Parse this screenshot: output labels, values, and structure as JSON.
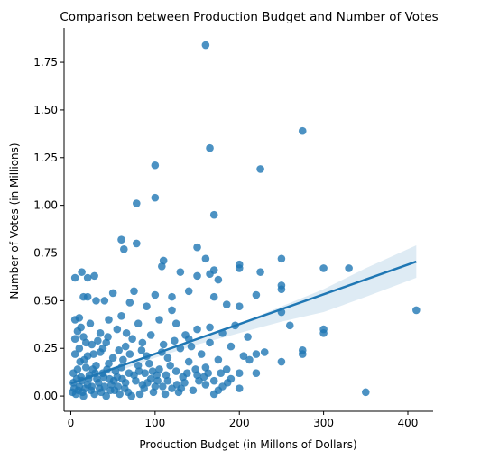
{
  "chart_data": {
    "type": "scatter",
    "title": "Comparison between Production Budget and Number of Votes",
    "xlabel": "Production Budget (in Millons of Dollars)",
    "ylabel": "Number of Votes (in Millions)",
    "xlim": [
      -8,
      430
    ],
    "ylim": [
      -0.08,
      1.93
    ],
    "xticks": [
      0,
      100,
      200,
      300,
      400
    ],
    "xtick_labels": [
      "0",
      "100",
      "200",
      "300",
      "400"
    ],
    "yticks": [
      0.0,
      0.25,
      0.5,
      0.75,
      1.0,
      1.25,
      1.5,
      1.75
    ],
    "ytick_labels": [
      "0.00",
      "0.25",
      "0.50",
      "0.75",
      "1.00",
      "1.25",
      "1.50",
      "1.75"
    ],
    "grid": false,
    "point_color": "#1f77b4",
    "regression": {
      "color": "#1f77b4",
      "line": [
        [
          0,
          0.065
        ],
        [
          410,
          0.705
        ]
      ],
      "ci_band": {
        "x": [
          0,
          100,
          150,
          200,
          250,
          300,
          350,
          410
        ],
        "lower": [
          0.04,
          0.2,
          0.27,
          0.33,
          0.39,
          0.44,
          0.52,
          0.62
        ],
        "upper": [
          0.085,
          0.22,
          0.3,
          0.38,
          0.47,
          0.56,
          0.67,
          0.79
        ]
      }
    },
    "points": [
      [
        160,
        1.84
      ],
      [
        275,
        1.39
      ],
      [
        165,
        1.3
      ],
      [
        225,
        1.19
      ],
      [
        100,
        1.21
      ],
      [
        100,
        1.04
      ],
      [
        78,
        1.01
      ],
      [
        170,
        0.95
      ],
      [
        60,
        0.82
      ],
      [
        78,
        0.8
      ],
      [
        63,
        0.77
      ],
      [
        150,
        0.78
      ],
      [
        110,
        0.71
      ],
      [
        108,
        0.68
      ],
      [
        160,
        0.72
      ],
      [
        170,
        0.66
      ],
      [
        200,
        0.69
      ],
      [
        200,
        0.67
      ],
      [
        225,
        0.65
      ],
      [
        250,
        0.72
      ],
      [
        300,
        0.67
      ],
      [
        330,
        0.67
      ],
      [
        13,
        0.65
      ],
      [
        20,
        0.62
      ],
      [
        28,
        0.63
      ],
      [
        5,
        0.62
      ],
      [
        165,
        0.64
      ],
      [
        175,
        0.61
      ],
      [
        150,
        0.63
      ],
      [
        130,
        0.65
      ],
      [
        250,
        0.58
      ],
      [
        250,
        0.56
      ],
      [
        220,
        0.53
      ],
      [
        170,
        0.52
      ],
      [
        140,
        0.55
      ],
      [
        120,
        0.52
      ],
      [
        100,
        0.53
      ],
      [
        75,
        0.55
      ],
      [
        50,
        0.54
      ],
      [
        40,
        0.5
      ],
      [
        20,
        0.52
      ],
      [
        15,
        0.52
      ],
      [
        30,
        0.5
      ],
      [
        185,
        0.48
      ],
      [
        200,
        0.47
      ],
      [
        120,
        0.45
      ],
      [
        90,
        0.47
      ],
      [
        70,
        0.49
      ],
      [
        60,
        0.42
      ],
      [
        250,
        0.44
      ],
      [
        410,
        0.45
      ],
      [
        300,
        0.35
      ],
      [
        300,
        0.33
      ],
      [
        260,
        0.37
      ],
      [
        275,
        0.24
      ],
      [
        275,
        0.22
      ],
      [
        230,
        0.23
      ],
      [
        220,
        0.22
      ],
      [
        250,
        0.18
      ],
      [
        220,
        0.12
      ],
      [
        350,
        0.02
      ],
      [
        5,
        0.4
      ],
      [
        10,
        0.41
      ],
      [
        45,
        0.4
      ],
      [
        80,
        0.38
      ],
      [
        105,
        0.4
      ],
      [
        125,
        0.38
      ],
      [
        150,
        0.35
      ],
      [
        180,
        0.33
      ],
      [
        210,
        0.31
      ],
      [
        140,
        0.3
      ],
      [
        95,
        0.32
      ],
      [
        55,
        0.35
      ],
      [
        35,
        0.33
      ],
      [
        15,
        0.31
      ],
      [
        8,
        0.34
      ],
      [
        165,
        0.28
      ],
      [
        190,
        0.26
      ],
      [
        205,
        0.21
      ],
      [
        175,
        0.19
      ],
      [
        155,
        0.22
      ],
      [
        130,
        0.25
      ],
      [
        110,
        0.27
      ],
      [
        85,
        0.28
      ],
      [
        65,
        0.26
      ],
      [
        42,
        0.28
      ],
      [
        25,
        0.27
      ],
      [
        10,
        0.25
      ],
      [
        5,
        0.22
      ],
      [
        20,
        0.21
      ],
      [
        35,
        0.23
      ],
      [
        50,
        0.2
      ],
      [
        70,
        0.22
      ],
      [
        90,
        0.21
      ],
      [
        115,
        0.2
      ],
      [
        140,
        0.18
      ],
      [
        160,
        0.15
      ],
      [
        185,
        0.14
      ],
      [
        200,
        0.12
      ],
      [
        170,
        0.08
      ],
      [
        150,
        0.11
      ],
      [
        125,
        0.13
      ],
      [
        105,
        0.14
      ],
      [
        80,
        0.16
      ],
      [
        60,
        0.15
      ],
      [
        45,
        0.17
      ],
      [
        30,
        0.16
      ],
      [
        18,
        0.15
      ],
      [
        8,
        0.14
      ],
      [
        3,
        0.12
      ],
      [
        12,
        0.1
      ],
      [
        22,
        0.11
      ],
      [
        38,
        0.12
      ],
      [
        55,
        0.1
      ],
      [
        75,
        0.11
      ],
      [
        95,
        0.09
      ],
      [
        115,
        0.08
      ],
      [
        135,
        0.07
      ],
      [
        160,
        0.06
      ],
      [
        180,
        0.05
      ],
      [
        145,
        0.03
      ],
      [
        120,
        0.04
      ],
      [
        100,
        0.05
      ],
      [
        85,
        0.06
      ],
      [
        65,
        0.07
      ],
      [
        48,
        0.06
      ],
      [
        33,
        0.07
      ],
      [
        20,
        0.06
      ],
      [
        10,
        0.05
      ],
      [
        4,
        0.04
      ],
      [
        2,
        0.02
      ],
      [
        6,
        0.01
      ],
      [
        14,
        0.02
      ],
      [
        24,
        0.03
      ],
      [
        36,
        0.02
      ],
      [
        52,
        0.03
      ],
      [
        68,
        0.02
      ],
      [
        82,
        0.01
      ],
      [
        98,
        0.02
      ],
      [
        112,
        0.01
      ],
      [
        128,
        0.02
      ],
      [
        170,
        0.01
      ],
      [
        200,
        0.04
      ],
      [
        190,
        0.09
      ],
      [
        15,
        0.0
      ],
      [
        28,
        0.01
      ],
      [
        42,
        0.0
      ],
      [
        58,
        0.01
      ],
      [
        72,
        0.0
      ],
      [
        3,
        0.07
      ],
      [
        7,
        0.09
      ],
      [
        11,
        0.18
      ],
      [
        16,
        0.19
      ],
      [
        26,
        0.14
      ],
      [
        31,
        0.09
      ],
      [
        40,
        0.05
      ],
      [
        46,
        0.09
      ],
      [
        53,
        0.13
      ],
      [
        62,
        0.19
      ],
      [
        88,
        0.12
      ],
      [
        93,
        0.17
      ],
      [
        102,
        0.11
      ],
      [
        118,
        0.16
      ],
      [
        133,
        0.1
      ],
      [
        148,
        0.14
      ],
      [
        158,
        0.1
      ],
      [
        178,
        0.12
      ],
      [
        5,
        0.3
      ],
      [
        12,
        0.36
      ],
      [
        18,
        0.28
      ],
      [
        23,
        0.38
      ],
      [
        27,
        0.22
      ],
      [
        32,
        0.29
      ],
      [
        38,
        0.25
      ],
      [
        44,
        0.31
      ],
      [
        57,
        0.24
      ],
      [
        66,
        0.33
      ],
      [
        73,
        0.3
      ],
      [
        84,
        0.24
      ],
      [
        108,
        0.23
      ],
      [
        123,
        0.29
      ],
      [
        136,
        0.32
      ],
      [
        143,
        0.26
      ],
      [
        165,
        0.36
      ],
      [
        195,
        0.37
      ],
      [
        212,
        0.19
      ],
      [
        9,
        0.03
      ],
      [
        13,
        0.08
      ],
      [
        17,
        0.04
      ],
      [
        21,
        0.09
      ],
      [
        25,
        0.05
      ],
      [
        29,
        0.12
      ],
      [
        34,
        0.04
      ],
      [
        39,
        0.1
      ],
      [
        43,
        0.14
      ],
      [
        47,
        0.03
      ],
      [
        51,
        0.08
      ],
      [
        56,
        0.05
      ],
      [
        61,
        0.09
      ],
      [
        64,
        0.04
      ],
      [
        69,
        0.12
      ],
      [
        77,
        0.08
      ],
      [
        81,
        0.13
      ],
      [
        87,
        0.04
      ],
      [
        91,
        0.07
      ],
      [
        97,
        0.13
      ],
      [
        103,
        0.08
      ],
      [
        109,
        0.05
      ],
      [
        113,
        0.11
      ],
      [
        126,
        0.06
      ],
      [
        131,
        0.04
      ],
      [
        138,
        0.12
      ],
      [
        152,
        0.08
      ],
      [
        163,
        0.12
      ],
      [
        175,
        0.03
      ],
      [
        186,
        0.07
      ]
    ]
  }
}
